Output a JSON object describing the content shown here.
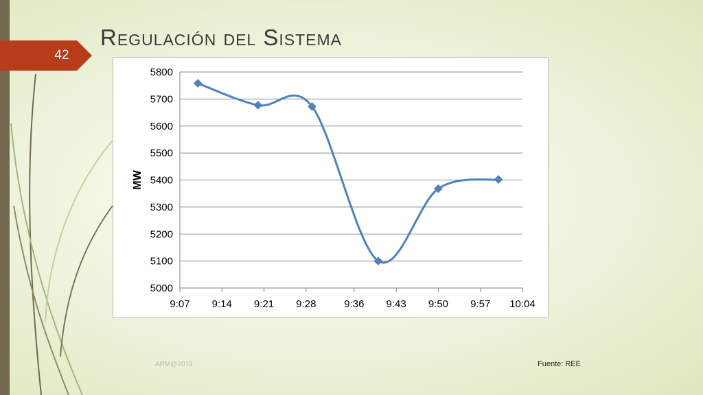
{
  "slide": {
    "number": "42",
    "title": "Regulación del Sistema",
    "footer_left": "ARM@2019",
    "footer_right": "Fuente: REE"
  },
  "colors": {
    "accent": "#b83b1a",
    "series": "#4f81bd",
    "sidebar": "#6f6a4d"
  },
  "chart_data": {
    "type": "line",
    "title": "",
    "xlabel": "",
    "ylabel": "MW",
    "x_ticks": [
      "9:07",
      "9:14",
      "9:21",
      "9:28",
      "9:36",
      "9:43",
      "9:50",
      "9:57",
      "10:04"
    ],
    "y_ticks": [
      "5000",
      "5100",
      "5200",
      "5300",
      "5400",
      "5500",
      "5600",
      "5700",
      "5800"
    ],
    "xlim": [
      "9:07",
      "10:04"
    ],
    "ylim": [
      5000,
      5800
    ],
    "grid": "horizontal",
    "smooth": true,
    "marker": "diamond",
    "series": [
      {
        "x": [
          "9:10",
          "9:20",
          "9:29",
          "9:40",
          "9:50",
          "10:00"
        ],
        "values": [
          5758,
          5677,
          5672,
          5100,
          5368,
          5402
        ]
      }
    ]
  }
}
